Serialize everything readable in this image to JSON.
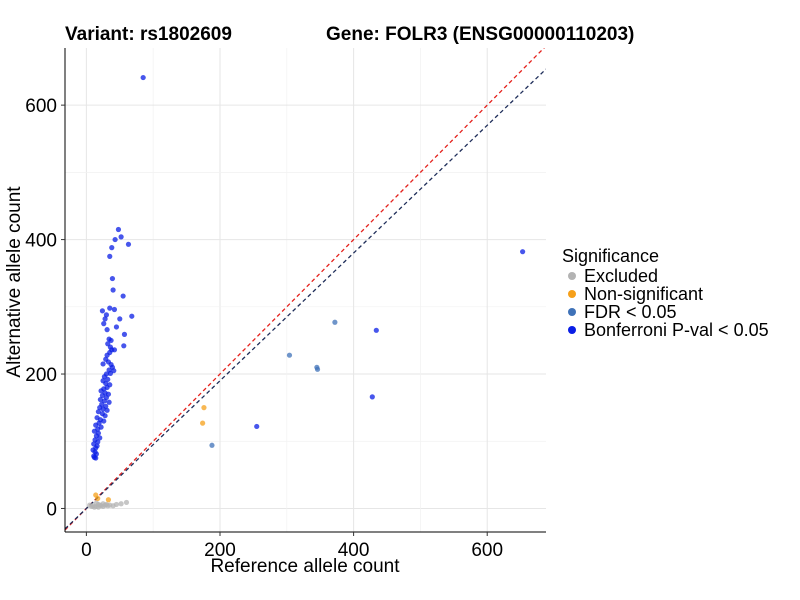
{
  "header": {
    "variant_title": "Variant: rs1802609",
    "gene_title": "Gene: FOLR3 (ENSG00000110203)"
  },
  "legend": {
    "title": "Significance",
    "items": [
      {
        "label": "Excluded",
        "color": "#b3b3b3"
      },
      {
        "label": "Non-significant",
        "color": "#f6a01a"
      },
      {
        "label": "FDR < 0.05",
        "color": "#3f72b8"
      },
      {
        "label": "Bonferroni P-val < 0.05",
        "color": "#0a1ee6"
      }
    ]
  },
  "chart_data": {
    "type": "scatter",
    "xlabel": "Reference allele count",
    "ylabel": "Alternative allele count",
    "xlim": [
      -32,
      688
    ],
    "ylim": [
      -35,
      685
    ],
    "xticks": [
      0,
      200,
      400,
      600
    ],
    "yticks": [
      0,
      200,
      400,
      600
    ],
    "grid": true,
    "legend_position": "right",
    "reference_lines": [
      {
        "slope": 1.0,
        "intercept": 0,
        "color": "#e4211c",
        "style": "dashed"
      },
      {
        "slope": 0.95,
        "intercept": 0,
        "color": "#1f2e5a",
        "style": "dashed"
      }
    ],
    "series": [
      {
        "name": "Excluded",
        "color": "#b3b3b3",
        "points": [
          [
            5,
            5
          ],
          [
            8,
            3
          ],
          [
            10,
            4
          ],
          [
            12,
            2
          ],
          [
            15,
            3
          ],
          [
            18,
            6
          ],
          [
            20,
            5
          ],
          [
            22,
            4
          ],
          [
            25,
            3
          ],
          [
            28,
            5
          ],
          [
            30,
            6
          ],
          [
            32,
            4
          ],
          [
            35,
            5
          ],
          [
            40,
            4
          ],
          [
            45,
            6
          ],
          [
            52,
            7
          ],
          [
            60,
            9
          ],
          [
            15,
            8
          ],
          [
            25,
            7
          ],
          [
            18,
            2
          ]
        ]
      },
      {
        "name": "Non-significant",
        "color": "#f6a01a",
        "points": [
          [
            14,
            20
          ],
          [
            33,
            13
          ],
          [
            176,
            150
          ],
          [
            174,
            127
          ],
          [
            17,
            15
          ]
        ]
      },
      {
        "name": "FDR < 0.05",
        "color": "#3f72b8",
        "points": [
          [
            372,
            277
          ],
          [
            304,
            228
          ],
          [
            345,
            210
          ],
          [
            346,
            207
          ],
          [
            188,
            94
          ]
        ]
      },
      {
        "name": "Bonferroni P-val < 0.05",
        "color": "#0a1ee6",
        "points": [
          [
            85,
            641
          ],
          [
            653,
            382
          ],
          [
            434,
            265
          ],
          [
            428,
            166
          ],
          [
            255,
            122
          ],
          [
            48,
            415
          ],
          [
            63,
            393
          ],
          [
            52,
            404
          ],
          [
            43,
            400
          ],
          [
            38,
            388
          ],
          [
            35,
            375
          ],
          [
            39,
            342
          ],
          [
            40,
            325
          ],
          [
            55,
            316
          ],
          [
            68,
            286
          ],
          [
            50,
            282
          ],
          [
            45,
            270
          ],
          [
            57,
            259
          ],
          [
            56,
            242
          ],
          [
            26,
            275
          ],
          [
            28,
            282
          ],
          [
            30,
            288
          ],
          [
            35,
            298
          ],
          [
            42,
            296
          ],
          [
            24,
            294
          ],
          [
            31,
            266
          ],
          [
            34,
            252
          ],
          [
            37,
            250
          ],
          [
            32,
            245
          ],
          [
            36,
            240
          ],
          [
            38,
            236
          ],
          [
            35,
            232
          ],
          [
            42,
            236
          ],
          [
            31,
            228
          ],
          [
            29,
            222
          ],
          [
            33,
            218
          ],
          [
            37,
            214
          ],
          [
            25,
            215
          ],
          [
            39,
            210
          ],
          [
            34,
            206
          ],
          [
            41,
            205
          ],
          [
            36,
            201
          ],
          [
            30,
            200
          ],
          [
            27,
            196
          ],
          [
            32,
            192
          ],
          [
            25,
            190
          ],
          [
            29,
            186
          ],
          [
            35,
            184
          ],
          [
            31,
            180
          ],
          [
            26,
            178
          ],
          [
            22,
            175
          ],
          [
            28,
            172
          ],
          [
            33,
            170
          ],
          [
            24,
            168
          ],
          [
            30,
            165
          ],
          [
            21,
            162
          ],
          [
            27,
            160
          ],
          [
            34,
            158
          ],
          [
            23,
            155
          ],
          [
            29,
            152
          ],
          [
            20,
            150
          ],
          [
            25,
            148
          ],
          [
            31,
            146
          ],
          [
            18,
            144
          ],
          [
            24,
            141
          ],
          [
            28,
            138
          ],
          [
            16,
            135
          ],
          [
            21,
            132
          ],
          [
            26,
            130
          ],
          [
            19,
            127
          ],
          [
            14,
            124
          ],
          [
            22,
            121
          ],
          [
            17,
            118
          ],
          [
            12,
            115
          ],
          [
            18,
            112
          ],
          [
            15,
            108
          ],
          [
            20,
            105
          ],
          [
            13,
            102
          ],
          [
            17,
            99
          ],
          [
            11,
            96
          ],
          [
            16,
            93
          ],
          [
            14,
            90
          ],
          [
            10,
            87
          ],
          [
            13,
            84
          ],
          [
            15,
            81
          ],
          [
            11,
            78
          ],
          [
            12,
            76
          ],
          [
            14,
            75
          ]
        ]
      }
    ]
  }
}
